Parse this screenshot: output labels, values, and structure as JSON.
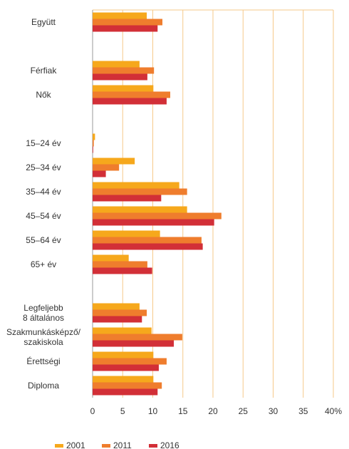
{
  "chart_data": {
    "type": "bar",
    "orientation": "horizontal",
    "categories": [
      "Együtt",
      null,
      "Férfiak",
      "Nők",
      null,
      "15–24 év",
      "25–34 év",
      "35–44 év",
      "45–54 év",
      "55–64 év",
      "65+ év",
      null,
      "Legfeljebb\n8 általános",
      "Szakmunkásképző/\nszakiskola",
      "Érettségi",
      "Diploma"
    ],
    "series": [
      {
        "name": "2001",
        "color": "#f6a81c",
        "values": [
          9.0,
          null,
          7.8,
          10.1,
          null,
          0.4,
          7.0,
          14.4,
          15.7,
          11.2,
          6.0,
          null,
          7.8,
          9.8,
          10.1,
          10.1
        ]
      },
      {
        "name": "2011",
        "color": "#ef7d2d",
        "values": [
          11.6,
          null,
          10.2,
          12.9,
          null,
          0.2,
          4.4,
          15.7,
          21.4,
          18.1,
          9.1,
          null,
          9.0,
          14.9,
          12.3,
          11.5
        ]
      },
      {
        "name": "2016",
        "color": "#d22f37",
        "values": [
          10.8,
          null,
          9.1,
          12.3,
          null,
          0.1,
          2.2,
          11.4,
          20.2,
          18.3,
          9.9,
          null,
          8.2,
          13.5,
          11.0,
          10.8
        ]
      }
    ],
    "xlim": [
      0,
      40
    ],
    "xticks": [
      0,
      5,
      10,
      15,
      20,
      25,
      30,
      35,
      {
        "value": 40,
        "label": "40%"
      }
    ],
    "grid": true,
    "legend": "bottom"
  }
}
